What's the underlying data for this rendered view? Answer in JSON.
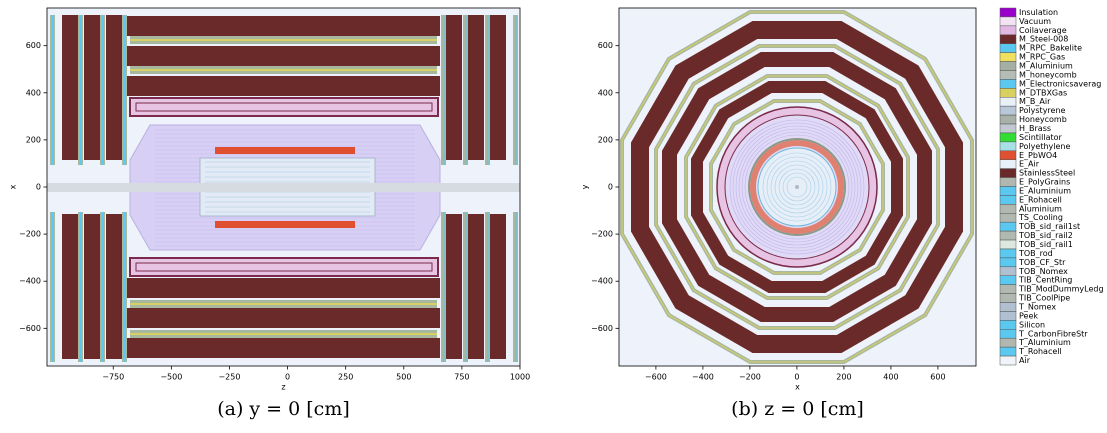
{
  "panels": [
    {
      "type": "detector-slice",
      "xlabel": "z",
      "ylabel": "x",
      "caption": "(a) y = 0 [cm]",
      "xlim": [
        -1035,
        1000
      ],
      "ylim": [
        -760,
        760
      ],
      "xticks": [
        {
          "value": -750,
          "label": "−750"
        },
        {
          "value": -500,
          "label": "−500"
        },
        {
          "value": -250,
          "label": "−250"
        },
        0,
        250,
        500,
        750,
        1000
      ],
      "yticks": [
        {
          "value": -600,
          "label": "−600"
        },
        {
          "value": -400,
          "label": "−400"
        },
        {
          "value": -200,
          "label": "−200"
        },
        0,
        200,
        400,
        600
      ]
    },
    {
      "type": "detector-slice",
      "xlabel": "x",
      "ylabel": "y",
      "caption": "(b) z = 0 [cm]",
      "xlim": [
        -757,
        762
      ],
      "ylim": [
        -760,
        760
      ],
      "xticks": [
        {
          "value": -600,
          "label": "−600"
        },
        {
          "value": -400,
          "label": "−400"
        },
        {
          "value": -200,
          "label": "−200"
        },
        0,
        200,
        400,
        600
      ],
      "yticks": [
        {
          "value": -600,
          "label": "−600"
        },
        {
          "value": -400,
          "label": "−400"
        },
        {
          "value": -200,
          "label": "−200"
        },
        0,
        200,
        400,
        600
      ]
    }
  ],
  "legend": {
    "entries": [
      {
        "name": "Insulation",
        "color": "#9900cc"
      },
      {
        "name": "Vacuum",
        "color": "#f2e4f2"
      },
      {
        "name": "Coilaverage",
        "color": "#e2b8e2"
      },
      {
        "name": "M_Steel-008",
        "color": "#6b2a2a"
      },
      {
        "name": "M_RPC_Bakelite",
        "color": "#5bc8f0"
      },
      {
        "name": "M_RPC_Gas",
        "color": "#f0e060"
      },
      {
        "name": "M_Aluminium",
        "color": "#a4b0a4"
      },
      {
        "name": "M_honeycomb",
        "color": "#b4bcb4"
      },
      {
        "name": "M_Electronicsaverag",
        "color": "#5bc8f0"
      },
      {
        "name": "M_DTBXGas",
        "color": "#d8d060"
      },
      {
        "name": "M_B_Air",
        "color": "#e8f0f8"
      },
      {
        "name": "Polystyrene",
        "color": "#b8c8d8"
      },
      {
        "name": "Honeycomb",
        "color": "#a8b0a8"
      },
      {
        "name": "H_Brass",
        "color": "#c0c8d0"
      },
      {
        "name": "Scintillator",
        "color": "#33dd33"
      },
      {
        "name": "Polyethylene",
        "color": "#a8e0e8"
      },
      {
        "name": "E_PbWO4",
        "color": "#e05030"
      },
      {
        "name": "E_Air",
        "color": "#e8f0f8"
      },
      {
        "name": "StainlessSteel",
        "color": "#6b2a2a"
      },
      {
        "name": "E_PolyGrains",
        "color": "#b0b8b0"
      },
      {
        "name": "E_Aluminium",
        "color": "#5bc8f0"
      },
      {
        "name": "E_Rohacell",
        "color": "#5bc8f0"
      },
      {
        "name": "Aluminium",
        "color": "#b0b8b0"
      },
      {
        "name": "TS_Cooling",
        "color": "#b0b8b0"
      },
      {
        "name": "TOB_sid_rail1st",
        "color": "#5bc8f0"
      },
      {
        "name": "TOB_sid_rail2",
        "color": "#b0b8b0"
      },
      {
        "name": "TOB_sid_rail1",
        "color": "#dde8e0"
      },
      {
        "name": "TOB_rod",
        "color": "#5bc8f0"
      },
      {
        "name": "TOB_CF_Str",
        "color": "#5bc8f0"
      },
      {
        "name": "TOB_Nomex",
        "color": "#b0c0d0"
      },
      {
        "name": "TIB_CentRing",
        "color": "#5bc8f0"
      },
      {
        "name": "TIB_ModDummyLedg",
        "color": "#b0b8b0"
      },
      {
        "name": "TIB_CoolPipe",
        "color": "#b0b8b0"
      },
      {
        "name": "T_Nomex",
        "color": "#b0c0d0"
      },
      {
        "name": "Peek",
        "color": "#b0c0d0"
      },
      {
        "name": "Silicon",
        "color": "#5bc8f0"
      },
      {
        "name": "T_CarbonFibreStr",
        "color": "#5bc8f0"
      },
      {
        "name": "T_Aluminium",
        "color": "#b0b8b0"
      },
      {
        "name": "T_Rohacell",
        "color": "#5bc8f0"
      },
      {
        "name": "Air",
        "color": "#f0f4fa"
      }
    ]
  }
}
